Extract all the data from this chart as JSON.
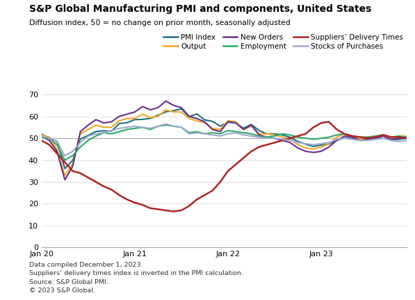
{
  "title": "S&P Global Manufacturing PMI and components, United States",
  "subtitle": "Diffusion index, 50 = no change on prior month, seasonally adjusted",
  "footnotes": [
    "Data compiled December 1, 2023.",
    "Suppliers’ delivery times index is inverted in the PMI calculation.",
    "Source: S&P Global PMI.",
    "© 2023 S&P Global."
  ],
  "ylim": [
    0,
    70
  ],
  "yticks": [
    0,
    10,
    20,
    30,
    40,
    50,
    60,
    70
  ],
  "hline_y": 50,
  "series": {
    "PMI Index": {
      "color": "#1a7080",
      "lw": 1.5,
      "data": [
        51.9,
        50.1,
        48.5,
        36.1,
        39.8,
        49.6,
        51.3,
        53.1,
        53.4,
        53.2,
        56.7,
        57.1,
        58.5,
        58.6,
        59.1,
        60.5,
        62.1,
        62.6,
        63.4,
        59.9,
        61.1,
        58.4,
        57.7,
        55.5,
        57.3,
        57.0,
        54.6,
        56.3,
        53.5,
        52.0,
        52.0,
        51.5,
        50.4,
        48.5,
        47.3,
        46.2,
        46.9,
        47.3,
        49.0,
        50.2,
        49.8,
        49.0,
        49.4,
        49.9,
        50.0,
        49.4,
        49.5,
        50.0
      ]
    },
    "Output": {
      "color": "#f5a623",
      "lw": 1.5,
      "data": [
        51.5,
        50.5,
        45.0,
        33.0,
        38.0,
        52.0,
        54.0,
        56.0,
        55.0,
        55.0,
        58.0,
        59.0,
        59.0,
        61.0,
        59.5,
        60.0,
        63.0,
        62.0,
        62.0,
        59.0,
        58.0,
        57.0,
        54.5,
        54.0,
        58.0,
        57.5,
        54.0,
        55.5,
        52.0,
        52.0,
        51.5,
        50.5,
        49.5,
        47.0,
        45.5,
        45.0,
        46.0,
        47.5,
        50.5,
        52.0,
        51.0,
        49.5,
        50.5,
        51.0,
        51.5,
        50.5,
        51.0,
        51.0
      ]
    },
    "New Orders": {
      "color": "#6b2d8b",
      "lw": 1.5,
      "data": [
        51.0,
        49.0,
        44.0,
        31.0,
        37.0,
        53.0,
        56.0,
        58.5,
        57.0,
        57.5,
        60.0,
        61.0,
        62.0,
        64.5,
        63.0,
        64.0,
        67.0,
        65.0,
        64.0,
        60.0,
        59.0,
        57.5,
        54.0,
        53.0,
        57.5,
        57.0,
        54.0,
        56.0,
        51.5,
        50.5,
        50.0,
        49.0,
        48.0,
        45.5,
        44.0,
        43.5,
        44.0,
        46.0,
        49.0,
        51.0,
        50.5,
        49.0,
        49.5,
        50.0,
        51.0,
        49.5,
        50.0,
        50.5
      ]
    },
    "Employment": {
      "color": "#2aaa6a",
      "lw": 1.5,
      "data": [
        50.5,
        50.0,
        47.0,
        40.0,
        42.0,
        46.0,
        49.0,
        51.0,
        52.5,
        52.0,
        53.0,
        54.0,
        54.5,
        55.0,
        54.0,
        55.5,
        56.0,
        55.5,
        55.0,
        52.5,
        53.0,
        52.0,
        52.5,
        52.0,
        53.5,
        53.0,
        52.5,
        52.0,
        51.0,
        50.5,
        51.0,
        52.0,
        51.5,
        50.5,
        50.0,
        49.5,
        50.0,
        50.5,
        51.5,
        52.0,
        51.0,
        50.5,
        50.5,
        51.0,
        51.5,
        50.5,
        51.0,
        50.5
      ]
    },
    "Suppliers’ Delivery Times": {
      "color": "#b22222",
      "lw": 1.8,
      "data": [
        49.0,
        47.0,
        43.0,
        39.0,
        35.0,
        34.0,
        32.0,
        30.0,
        28.0,
        26.5,
        24.0,
        22.0,
        20.5,
        19.5,
        18.0,
        17.5,
        17.0,
        16.5,
        17.0,
        19.0,
        22.0,
        24.0,
        26.0,
        30.0,
        35.0,
        38.0,
        41.0,
        44.0,
        46.0,
        47.0,
        48.0,
        49.0,
        50.0,
        51.0,
        52.0,
        55.0,
        57.0,
        57.5,
        54.0,
        52.0,
        51.0,
        50.5,
        50.0,
        50.5,
        51.5,
        50.5,
        50.5,
        50.0
      ]
    },
    "Stocks of Purchases": {
      "color": "#a0a8d0",
      "lw": 1.5,
      "data": [
        51.0,
        50.0,
        48.5,
        42.0,
        44.0,
        48.0,
        51.0,
        52.0,
        52.5,
        53.5,
        54.5,
        55.0,
        55.5,
        55.0,
        54.5,
        55.5,
        56.5,
        55.5,
        55.0,
        52.0,
        52.5,
        52.0,
        51.5,
        51.0,
        52.0,
        52.5,
        51.5,
        51.0,
        50.5,
        50.0,
        50.0,
        49.5,
        49.0,
        48.0,
        47.5,
        47.0,
        47.5,
        48.0,
        49.5,
        50.0,
        49.5,
        49.0,
        49.0,
        49.5,
        50.0,
        49.0,
        48.5,
        49.0
      ]
    }
  },
  "xtick_positions": [
    0,
    12,
    24,
    36
  ],
  "xtick_labels": [
    "Jan 20",
    "Jan 21",
    "Jan 22",
    "Jan 23"
  ],
  "legend_order": [
    "PMI Index",
    "Output",
    "New Orders",
    "Employment",
    "Suppliers’ Delivery Times",
    "Stocks of Purchases"
  ],
  "background_color": "#ffffff",
  "grid_color": "#d0d0d0"
}
